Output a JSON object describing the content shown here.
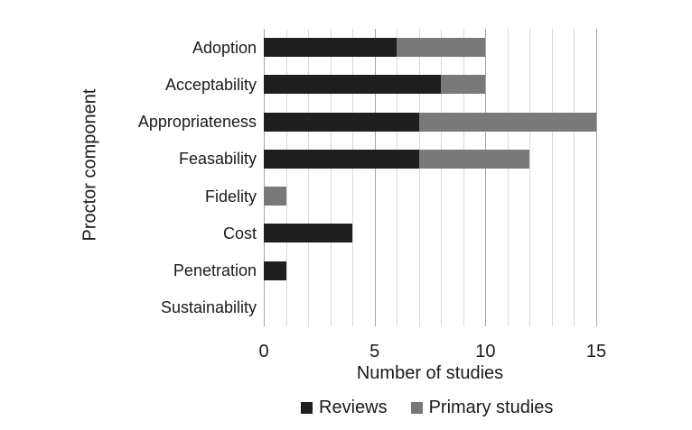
{
  "chart_data": {
    "type": "bar",
    "orientation": "horizontal",
    "stacked": true,
    "title": "",
    "xlabel": "Number of studies",
    "ylabel": "Proctor component",
    "categories": [
      "Adoption",
      "Acceptability",
      "Appropriateness",
      "Feasability",
      "Fidelity",
      "Cost",
      "Penetration",
      "Sustainability"
    ],
    "series": [
      {
        "name": "Reviews",
        "color": "#1f1f1f",
        "values": [
          6,
          8,
          7,
          7,
          0,
          4,
          1,
          0
        ]
      },
      {
        "name": "Primary studies",
        "color": "#797979",
        "values": [
          4,
          2,
          8,
          5,
          1,
          0,
          0,
          0
        ]
      }
    ],
    "totals": [
      10,
      10,
      15,
      12,
      1,
      4,
      1,
      0
    ],
    "xlim": [
      0,
      15
    ],
    "xticks": [
      0,
      5,
      10,
      15
    ],
    "grid": true,
    "grid_interval": 1,
    "legend_position": "bottom",
    "colors": {
      "background": "#ffffff",
      "grid_minor": "#d9d9d9",
      "grid_major": "#a6a6a6",
      "text": "#1a1a1a"
    }
  }
}
